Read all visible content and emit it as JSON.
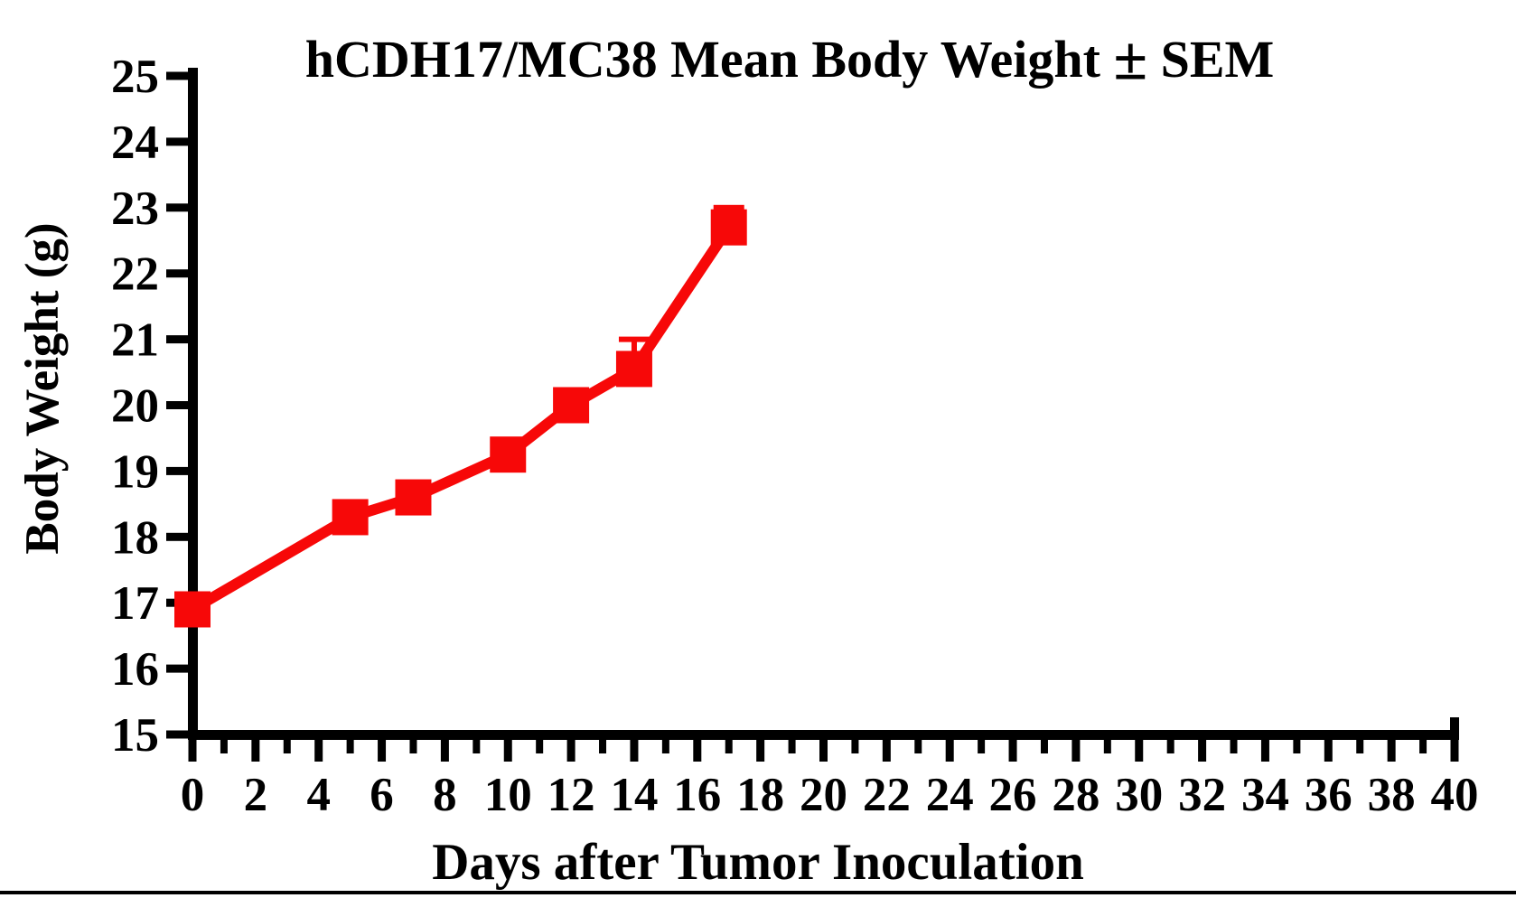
{
  "chart_data": {
    "type": "line",
    "title": "hCDH17/MC38 Mean Body Weight ± SEM",
    "title_parts": {
      "pre": "hCDH17/MC38 Mean Body Weight ",
      "plus_minus": "±",
      "post": " SEM"
    },
    "xlabel": "Days after Tumor Inoculation",
    "ylabel": "Body Weight (g)",
    "x": [
      0,
      5,
      7,
      10,
      12,
      14,
      17
    ],
    "series": [
      {
        "name": "hCDH17/MC38 mean body weight",
        "values": [
          16.9,
          18.3,
          18.6,
          19.25,
          20.0,
          20.55,
          22.7
        ],
        "sem_upper": [
          0,
          0,
          0,
          0,
          0,
          0.45,
          0.3
        ],
        "color": "#f70808",
        "marker": "square"
      }
    ],
    "xlim": [
      0,
      40
    ],
    "ylim": [
      15,
      25
    ],
    "x_tick_interval": 1,
    "x_label_interval": 2,
    "y_tick_interval": 1,
    "y_label_interval": 1,
    "x_tick_labels": [
      "0",
      "2",
      "4",
      "6",
      "8",
      "10",
      "12",
      "14",
      "16",
      "18",
      "20",
      "22",
      "24",
      "26",
      "28",
      "30",
      "32",
      "34",
      "36",
      "38",
      "40"
    ],
    "y_tick_labels": [
      "15",
      "16",
      "17",
      "18",
      "19",
      "20",
      "21",
      "22",
      "23",
      "24",
      "25"
    ],
    "grid": false,
    "legend_position": "none",
    "axis_color": "#000000",
    "background_color": "#ffffff"
  }
}
